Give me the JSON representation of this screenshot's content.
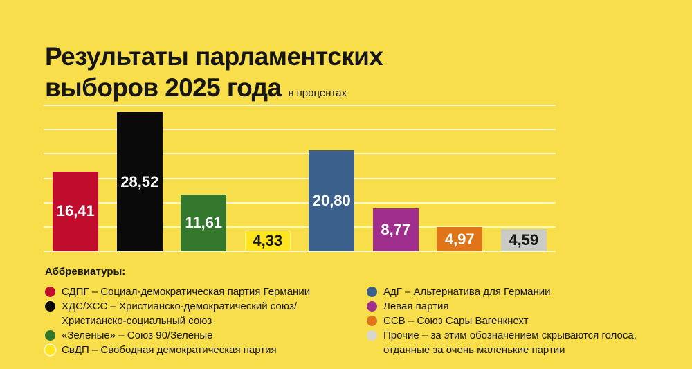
{
  "title": {
    "line1": "Результаты парламентских",
    "line2": "выборов 2025 года",
    "subtitle": "в процентах"
  },
  "chart_data": {
    "type": "bar",
    "title": "Результаты парламентских выборов 2025 года",
    "units_note": "в процентах",
    "categories": [
      "СДПГ",
      "ХДС/ХСС",
      "Зеленые",
      "СвДП",
      "АдГ",
      "Левая партия",
      "ССВ",
      "Прочие"
    ],
    "slugs": [
      "sdpg",
      "cdu-csu",
      "greens",
      "fdp",
      "afd",
      "left-party",
      "bsw",
      "others"
    ],
    "values": [
      16.41,
      28.52,
      11.61,
      4.33,
      20.8,
      8.77,
      4.97,
      4.59
    ],
    "value_labels": [
      "16,41",
      "28,52",
      "11,61",
      "4,33",
      "20,80",
      "8,77",
      "4,97",
      "4,59"
    ],
    "bar_colors": [
      "#C00D2D",
      "#0A0A0A",
      "#34782D",
      "#FFE51F",
      "#3B608C",
      "#A02E8C",
      "#DF7518",
      "#CBCBC5"
    ],
    "label_colors": [
      "#FFFFFF",
      "#FFFFFF",
      "#FFFFFF",
      "#161616",
      "#FFFFFF",
      "#FFFFFF",
      "#FFFFFF",
      "#161616"
    ],
    "bar_borders": [
      false,
      false,
      false,
      true,
      false,
      false,
      false,
      false
    ],
    "ylim": [
      0,
      30
    ],
    "grid_step": 5,
    "grid": "on",
    "xlabel": "",
    "ylabel": "проценты",
    "legend_position": "bottom"
  },
  "legend": {
    "heading": "Аббревиатуры:",
    "left": [
      {
        "slug": "sdpg",
        "color": "#C00D2D",
        "ring": false,
        "text": "СДПГ – Социал-демократическая партия Германии"
      },
      {
        "slug": "cdu-csu",
        "color": "#0A0A0A",
        "ring": false,
        "text": "ХДС/ХСС – Христианско-демократический союз/\nХристианско-социальный союз"
      },
      {
        "slug": "greens",
        "color": "#34782D",
        "ring": false,
        "text": "«Зеленые» – Союз 90/Зеленые"
      },
      {
        "slug": "fdp",
        "color": "#FFE51F",
        "ring": true,
        "text": "СвДП – Свободная демократическая партия"
      }
    ],
    "right": [
      {
        "slug": "afd",
        "color": "#3B608C",
        "ring": false,
        "text": "АдГ – Альтернатива для Германии"
      },
      {
        "slug": "left-party",
        "color": "#A02E8C",
        "ring": false,
        "text": "Левая партия"
      },
      {
        "slug": "bsw",
        "color": "#DF7518",
        "ring": false,
        "text": "ССВ – Союз Сары Вагенкнехт"
      },
      {
        "slug": "others",
        "color": "#D6D6CF",
        "ring": false,
        "text": "Прочие – за этим обозначением скрываются голоса,\nотданные за очень маленькие партии"
      }
    ]
  },
  "colors": {
    "background": "#F9DE4B",
    "gridline": "rgba(255,252,231,0.8)",
    "text": "#161616"
  }
}
